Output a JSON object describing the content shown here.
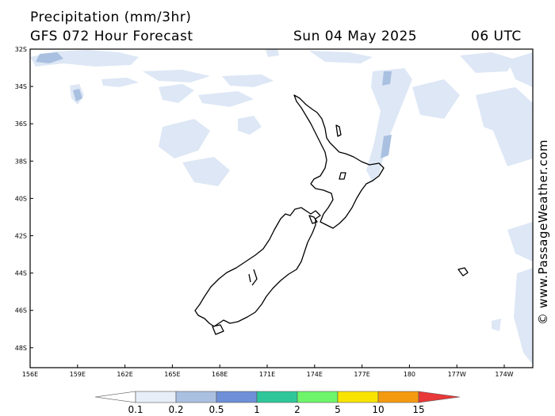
{
  "header": {
    "title": "Precipitation (mm/3hr)",
    "forecast": "GFS 072 Hour Forecast",
    "date": "Sun 04 May 2025",
    "time": "06 UTC"
  },
  "credit": "© www.PassageWeather.com",
  "axes": {
    "lat_labels": [
      "32S",
      "34S",
      "36S",
      "38S",
      "40S",
      "42S",
      "44S",
      "46S",
      "48S"
    ],
    "lon_labels": [
      "156E",
      "159E",
      "162E",
      "165E",
      "168E",
      "171E",
      "174E",
      "177E",
      "180",
      "177W",
      "174W"
    ]
  },
  "legend": {
    "labels": [
      "0.1",
      "0.2",
      "0.5",
      "1",
      "2",
      "5",
      "10",
      "15"
    ],
    "colors": [
      "#ffffff",
      "#e8eef8",
      "#a9c0e0",
      "#6f90d8",
      "#2fc79a",
      "#6ef56a",
      "#f8e400",
      "#f49a10",
      "#e83838"
    ]
  }
}
